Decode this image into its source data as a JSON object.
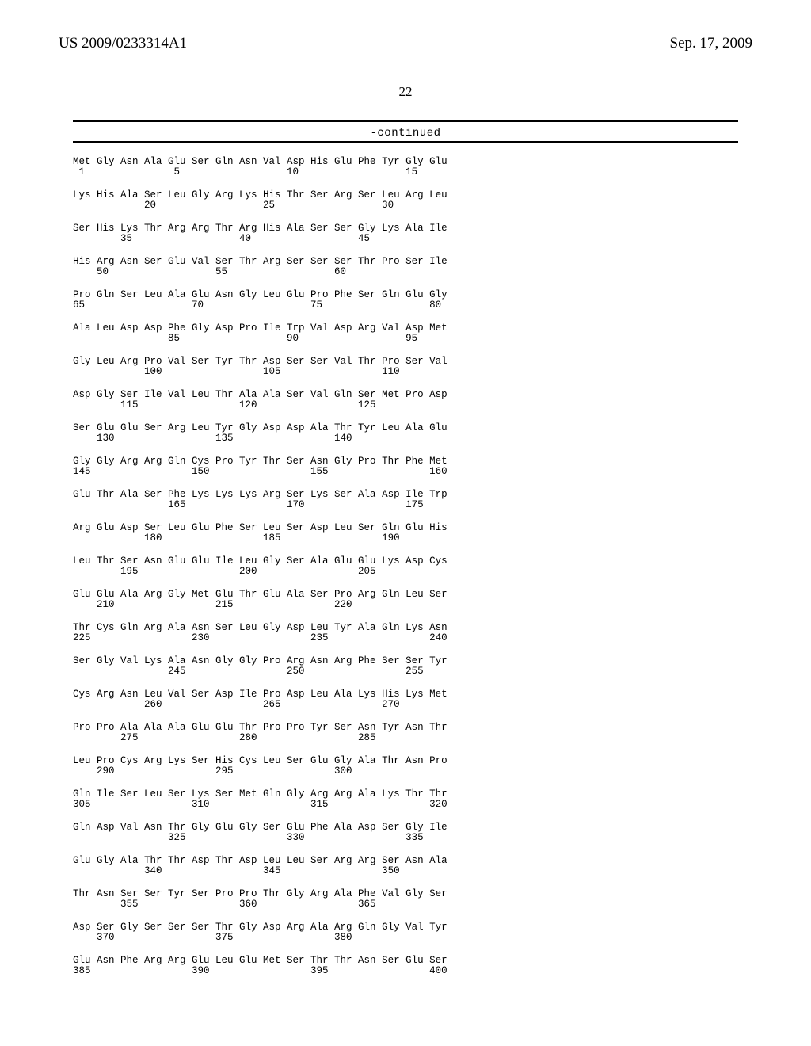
{
  "header": {
    "left": "US 2009/0233314A1",
    "right": "Sep. 17, 2009"
  },
  "page_number": "22",
  "continued": "-continued",
  "sequence_blocks": [
    {
      "row": "Met Gly Asn Ala Glu Ser Gln Asn Val Asp His Glu Phe Tyr Gly Glu",
      "nums": " 1               5                  10                  15"
    },
    {
      "row": "Lys His Ala Ser Leu Gly Arg Lys His Thr Ser Arg Ser Leu Arg Leu",
      "nums": "            20                  25                  30"
    },
    {
      "row": "Ser His Lys Thr Arg Arg Thr Arg His Ala Ser Ser Gly Lys Ala Ile",
      "nums": "        35                  40                  45"
    },
    {
      "row": "His Arg Asn Ser Glu Val Ser Thr Arg Ser Ser Ser Thr Pro Ser Ile",
      "nums": "    50                  55                  60"
    },
    {
      "row": "Pro Gln Ser Leu Ala Glu Asn Gly Leu Glu Pro Phe Ser Gln Glu Gly",
      "nums": "65                  70                  75                  80"
    },
    {
      "row": "Ala Leu Asp Asp Phe Gly Asp Pro Ile Trp Val Asp Arg Val Asp Met",
      "nums": "                85                  90                  95"
    },
    {
      "row": "Gly Leu Arg Pro Val Ser Tyr Thr Asp Ser Ser Val Thr Pro Ser Val",
      "nums": "            100                 105                 110"
    },
    {
      "row": "Asp Gly Ser Ile Val Leu Thr Ala Ala Ser Val Gln Ser Met Pro Asp",
      "nums": "        115                 120                 125"
    },
    {
      "row": "Ser Glu Glu Ser Arg Leu Tyr Gly Asp Asp Ala Thr Tyr Leu Ala Glu",
      "nums": "    130                 135                 140"
    },
    {
      "row": "Gly Gly Arg Arg Gln Cys Pro Tyr Thr Ser Asn Gly Pro Thr Phe Met",
      "nums": "145                 150                 155                 160"
    },
    {
      "row": "Glu Thr Ala Ser Phe Lys Lys Lys Arg Ser Lys Ser Ala Asp Ile Trp",
      "nums": "                165                 170                 175"
    },
    {
      "row": "Arg Glu Asp Ser Leu Glu Phe Ser Leu Ser Asp Leu Ser Gln Glu His",
      "nums": "            180                 185                 190"
    },
    {
      "row": "Leu Thr Ser Asn Glu Glu Ile Leu Gly Ser Ala Glu Glu Lys Asp Cys",
      "nums": "        195                 200                 205"
    },
    {
      "row": "Glu Glu Ala Arg Gly Met Glu Thr Glu Ala Ser Pro Arg Gln Leu Ser",
      "nums": "    210                 215                 220"
    },
    {
      "row": "Thr Cys Gln Arg Ala Asn Ser Leu Gly Asp Leu Tyr Ala Gln Lys Asn",
      "nums": "225                 230                 235                 240"
    },
    {
      "row": "Ser Gly Val Lys Ala Asn Gly Gly Pro Arg Asn Arg Phe Ser Ser Tyr",
      "nums": "                245                 250                 255"
    },
    {
      "row": "Cys Arg Asn Leu Val Ser Asp Ile Pro Asp Leu Ala Lys His Lys Met",
      "nums": "            260                 265                 270"
    },
    {
      "row": "Pro Pro Ala Ala Ala Glu Glu Thr Pro Pro Tyr Ser Asn Tyr Asn Thr",
      "nums": "        275                 280                 285"
    },
    {
      "row": "Leu Pro Cys Arg Lys Ser His Cys Leu Ser Glu Gly Ala Thr Asn Pro",
      "nums": "    290                 295                 300"
    },
    {
      "row": "Gln Ile Ser Leu Ser Lys Ser Met Gln Gly Arg Arg Ala Lys Thr Thr",
      "nums": "305                 310                 315                 320"
    },
    {
      "row": "Gln Asp Val Asn Thr Gly Glu Gly Ser Glu Phe Ala Asp Ser Gly Ile",
      "nums": "                325                 330                 335"
    },
    {
      "row": "Glu Gly Ala Thr Thr Asp Thr Asp Leu Leu Ser Arg Arg Ser Asn Ala",
      "nums": "            340                 345                 350"
    },
    {
      "row": "Thr Asn Ser Ser Tyr Ser Pro Pro Thr Gly Arg Ala Phe Val Gly Ser",
      "nums": "        355                 360                 365"
    },
    {
      "row": "Asp Ser Gly Ser Ser Ser Thr Gly Asp Arg Ala Arg Gln Gly Val Tyr",
      "nums": "    370                 375                 380"
    },
    {
      "row": "Glu Asn Phe Arg Arg Glu Leu Glu Met Ser Thr Thr Asn Ser Glu Ser",
      "nums": "385                 390                 395                 400"
    }
  ]
}
